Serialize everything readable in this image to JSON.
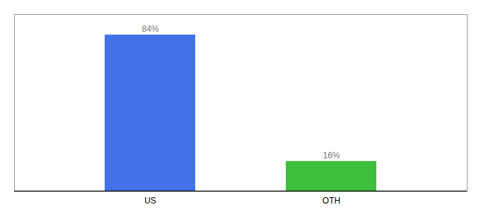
{
  "chart_data": {
    "type": "bar",
    "categories": [
      "US",
      "OTH"
    ],
    "values": [
      84,
      16
    ],
    "value_labels": [
      "84%",
      "16%"
    ],
    "colors": [
      "#4472e8",
      "#3dbe3d"
    ],
    "ylim": [
      0,
      95
    ],
    "data_labels": true,
    "tick_labels": "x"
  }
}
